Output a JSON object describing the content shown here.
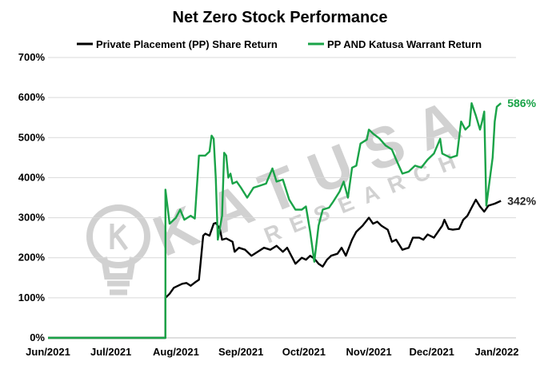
{
  "chart_data": {
    "type": "line",
    "title": "Net Zero Stock Performance",
    "xlabel": "",
    "ylabel": "",
    "x_ticks": [
      "Jun/2021",
      "Jul/2021",
      "Aug/2021",
      "Sep/2021",
      "Oct/2021",
      "Nov/2021",
      "Dec/2021",
      "Jan/2022"
    ],
    "y_ticks": [
      "0%",
      "100%",
      "200%",
      "300%",
      "400%",
      "500%",
      "600%",
      "700%"
    ],
    "ylim": [
      0,
      700
    ],
    "xlim": [
      "2021-06-01",
      "2022-01-01"
    ],
    "grid": "horizontal",
    "legend_position": "top",
    "series": [
      {
        "name": "Private Placement (PP) Share Return",
        "color": "#000000",
        "end_label": "342%",
        "points": [
          [
            "2021-06-01",
            0
          ],
          [
            "2021-07-27",
            0
          ],
          [
            "2021-07-27",
            100
          ],
          [
            "2021-07-29",
            110
          ],
          [
            "2021-07-31",
            125
          ],
          [
            "2021-08-02",
            130
          ],
          [
            "2021-08-04",
            135
          ],
          [
            "2021-08-06",
            137
          ],
          [
            "2021-08-08",
            130
          ],
          [
            "2021-08-10",
            138
          ],
          [
            "2021-08-12",
            145
          ],
          [
            "2021-08-14",
            255
          ],
          [
            "2021-08-15",
            260
          ],
          [
            "2021-08-17",
            255
          ],
          [
            "2021-08-19",
            285
          ],
          [
            "2021-08-20",
            287
          ],
          [
            "2021-08-21",
            280
          ],
          [
            "2021-08-22",
            270
          ],
          [
            "2021-08-23",
            245
          ],
          [
            "2021-08-25",
            248
          ],
          [
            "2021-08-28",
            240
          ],
          [
            "2021-08-29",
            215
          ],
          [
            "2021-08-31",
            225
          ],
          [
            "2021-09-03",
            220
          ],
          [
            "2021-09-06",
            205
          ],
          [
            "2021-09-09",
            215
          ],
          [
            "2021-09-12",
            225
          ],
          [
            "2021-09-15",
            220
          ],
          [
            "2021-09-18",
            230
          ],
          [
            "2021-09-21",
            215
          ],
          [
            "2021-09-23",
            225
          ],
          [
            "2021-09-25",
            205
          ],
          [
            "2021-09-27",
            185
          ],
          [
            "2021-09-30",
            200
          ],
          [
            "2021-10-02",
            195
          ],
          [
            "2021-10-04",
            205
          ],
          [
            "2021-10-06",
            198
          ],
          [
            "2021-10-08",
            185
          ],
          [
            "2021-10-10",
            178
          ],
          [
            "2021-10-12",
            195
          ],
          [
            "2021-10-14",
            205
          ],
          [
            "2021-10-17",
            210
          ],
          [
            "2021-10-19",
            225
          ],
          [
            "2021-10-21",
            205
          ],
          [
            "2021-10-24",
            245
          ],
          [
            "2021-10-26",
            265
          ],
          [
            "2021-10-29",
            280
          ],
          [
            "2021-11-01",
            300
          ],
          [
            "2021-11-03",
            285
          ],
          [
            "2021-11-05",
            290
          ],
          [
            "2021-11-07",
            280
          ],
          [
            "2021-11-10",
            270
          ],
          [
            "2021-11-12",
            240
          ],
          [
            "2021-11-14",
            245
          ],
          [
            "2021-11-17",
            220
          ],
          [
            "2021-11-20",
            225
          ],
          [
            "2021-11-22",
            250
          ],
          [
            "2021-11-25",
            250
          ],
          [
            "2021-11-27",
            245
          ],
          [
            "2021-11-29",
            258
          ],
          [
            "2021-12-02",
            250
          ],
          [
            "2021-12-04",
            265
          ],
          [
            "2021-12-06",
            280
          ],
          [
            "2021-12-07",
            295
          ],
          [
            "2021-12-09",
            272
          ],
          [
            "2021-12-11",
            270
          ],
          [
            "2021-12-14",
            272
          ],
          [
            "2021-12-16",
            295
          ],
          [
            "2021-12-18",
            305
          ],
          [
            "2021-12-20",
            325
          ],
          [
            "2021-12-22",
            345
          ],
          [
            "2021-12-24",
            328
          ],
          [
            "2021-12-26",
            315
          ],
          [
            "2021-12-28",
            330
          ],
          [
            "2021-12-31",
            335
          ],
          [
            "2022-01-03",
            342
          ]
        ]
      },
      {
        "name": "PP AND Katusa Warrant Return",
        "color": "#1aa348",
        "end_label": "586%",
        "points": [
          [
            "2021-06-01",
            0
          ],
          [
            "2021-07-27",
            0
          ],
          [
            "2021-07-27",
            370
          ],
          [
            "2021-07-29",
            285
          ],
          [
            "2021-08-01",
            300
          ],
          [
            "2021-08-03",
            320
          ],
          [
            "2021-08-05",
            295
          ],
          [
            "2021-08-08",
            305
          ],
          [
            "2021-08-10",
            298
          ],
          [
            "2021-08-12",
            455
          ],
          [
            "2021-08-15",
            455
          ],
          [
            "2021-08-17",
            465
          ],
          [
            "2021-08-18",
            505
          ],
          [
            "2021-08-19",
            497
          ],
          [
            "2021-08-20",
            400
          ],
          [
            "2021-08-21",
            245
          ],
          [
            "2021-08-23",
            305
          ],
          [
            "2021-08-24",
            462
          ],
          [
            "2021-08-25",
            455
          ],
          [
            "2021-08-26",
            400
          ],
          [
            "2021-08-27",
            410
          ],
          [
            "2021-08-28",
            385
          ],
          [
            "2021-08-30",
            390
          ],
          [
            "2021-09-01",
            375
          ],
          [
            "2021-09-04",
            350
          ],
          [
            "2021-09-07",
            375
          ],
          [
            "2021-09-10",
            380
          ],
          [
            "2021-09-13",
            385
          ],
          [
            "2021-09-16",
            423
          ],
          [
            "2021-09-18",
            390
          ],
          [
            "2021-09-21",
            395
          ],
          [
            "2021-09-24",
            345
          ],
          [
            "2021-09-27",
            320
          ],
          [
            "2021-09-30",
            320
          ],
          [
            "2021-10-02",
            328
          ],
          [
            "2021-10-04",
            265
          ],
          [
            "2021-10-06",
            190
          ],
          [
            "2021-10-08",
            280
          ],
          [
            "2021-10-10",
            320
          ],
          [
            "2021-10-13",
            325
          ],
          [
            "2021-10-15",
            340
          ],
          [
            "2021-10-18",
            365
          ],
          [
            "2021-10-20",
            390
          ],
          [
            "2021-10-22",
            350
          ],
          [
            "2021-10-24",
            425
          ],
          [
            "2021-10-26",
            430
          ],
          [
            "2021-10-28",
            485
          ],
          [
            "2021-10-31",
            495
          ],
          [
            "2021-11-01",
            520
          ],
          [
            "2021-11-03",
            510
          ],
          [
            "2021-11-06",
            498
          ],
          [
            "2021-11-09",
            480
          ],
          [
            "2021-11-12",
            470
          ],
          [
            "2021-11-14",
            445
          ],
          [
            "2021-11-17",
            410
          ],
          [
            "2021-11-20",
            415
          ],
          [
            "2021-11-23",
            430
          ],
          [
            "2021-11-26",
            425
          ],
          [
            "2021-11-29",
            445
          ],
          [
            "2021-12-02",
            460
          ],
          [
            "2021-12-05",
            497
          ],
          [
            "2021-12-06",
            460
          ],
          [
            "2021-12-10",
            450
          ],
          [
            "2021-12-13",
            455
          ],
          [
            "2021-12-15",
            540
          ],
          [
            "2021-12-17",
            520
          ],
          [
            "2021-12-19",
            530
          ],
          [
            "2021-12-20",
            586
          ],
          [
            "2021-12-22",
            555
          ],
          [
            "2021-12-24",
            520
          ],
          [
            "2021-12-25",
            540
          ],
          [
            "2021-12-26",
            565
          ],
          [
            "2021-12-27",
            330
          ],
          [
            "2021-12-30",
            450
          ],
          [
            "2021-12-31",
            540
          ],
          [
            "2022-01-01",
            577
          ],
          [
            "2022-01-03",
            586
          ]
        ]
      }
    ],
    "watermark": {
      "main": "KATUSA",
      "sub": "RESEARCH"
    }
  }
}
